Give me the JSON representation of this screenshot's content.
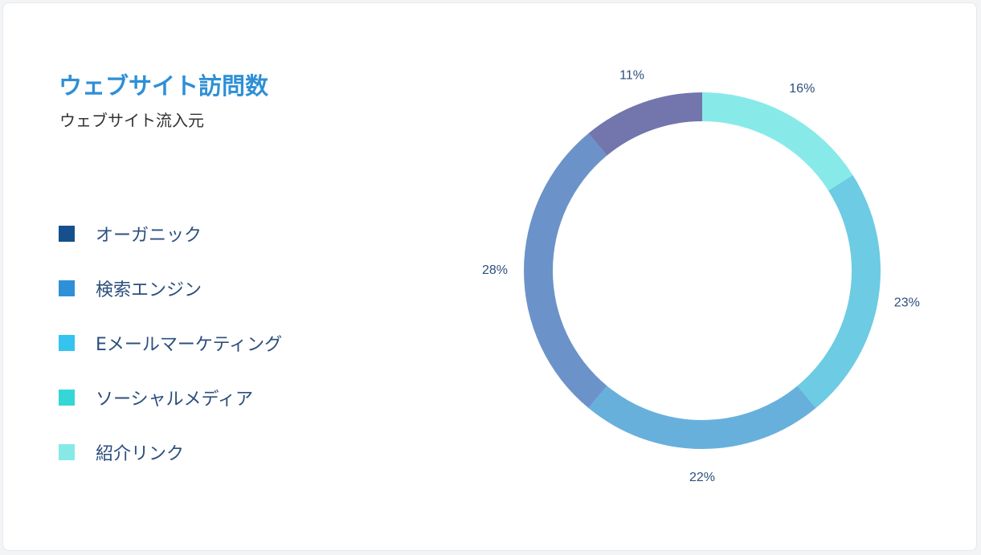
{
  "header": {
    "title": "ウェブサイト訪問数",
    "subtitle": "ウェブサイト流入元"
  },
  "legend": [
    {
      "label": "オーガニック",
      "color": "#16508c"
    },
    {
      "label": "検索エンジン",
      "color": "#2e90d8"
    },
    {
      "label": "Eメールマーケティング",
      "color": "#34c4ef"
    },
    {
      "label": "ソーシャルメディア",
      "color": "#35d6d6"
    },
    {
      "label": "紹介リンク",
      "color": "#86e9e6"
    }
  ],
  "chart_data": {
    "type": "pie",
    "style": "donut",
    "title": "ウェブサイト訪問数",
    "subtitle": "ウェブサイト流入元",
    "legend_position": "left",
    "slices": [
      {
        "label": "16%",
        "value": 16,
        "color": "#88eae8"
      },
      {
        "label": "23%",
        "value": 23,
        "color": "#6dcbe3"
      },
      {
        "label": "22%",
        "value": 22,
        "color": "#68b0dc"
      },
      {
        "label": "28%",
        "value": 28,
        "color": "#6b93c9"
      },
      {
        "label": "11%",
        "value": 11,
        "color": "#7375ad"
      }
    ]
  }
}
